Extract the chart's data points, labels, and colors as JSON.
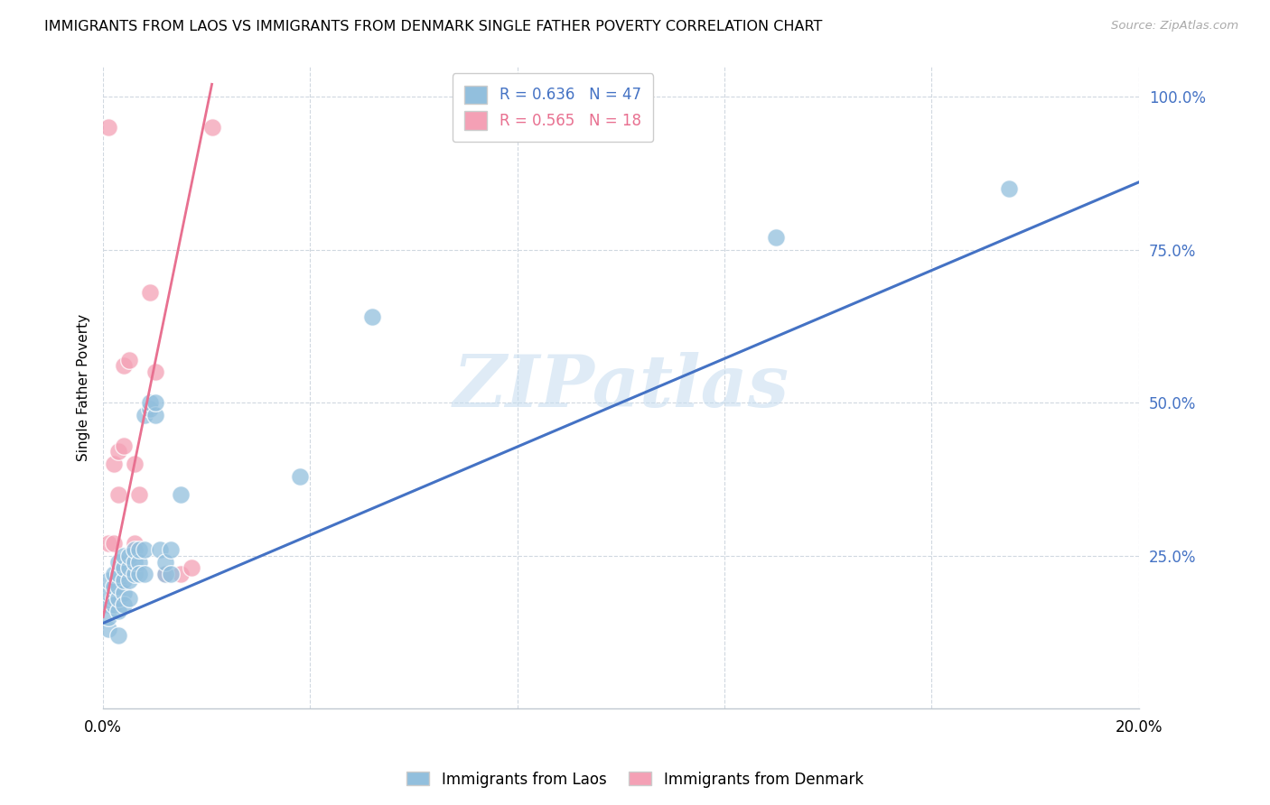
{
  "title": "IMMIGRANTS FROM LAOS VS IMMIGRANTS FROM DENMARK SINGLE FATHER POVERTY CORRELATION CHART",
  "source": "Source: ZipAtlas.com",
  "ylabel": "Single Father Poverty",
  "x_min": 0.0,
  "x_max": 0.2,
  "y_min": 0.0,
  "y_max": 1.05,
  "x_ticks": [
    0.0,
    0.04,
    0.08,
    0.12,
    0.16,
    0.2
  ],
  "x_tick_labels": [
    "0.0%",
    "",
    "",
    "",
    "",
    "20.0%"
  ],
  "y_ticks": [
    0.0,
    0.25,
    0.5,
    0.75,
    1.0
  ],
  "y_tick_labels_right": [
    "",
    "25.0%",
    "50.0%",
    "75.0%",
    "100.0%"
  ],
  "color_laos": "#92bfdd",
  "color_denmark": "#f4a0b5",
  "trendline_laos_color": "#4472c4",
  "trendline_denmark_color": "#e87090",
  "R_laos": 0.636,
  "N_laos": 47,
  "R_denmark": 0.565,
  "N_denmark": 18,
  "watermark": "ZIPatlas",
  "laos_trendline_x0": 0.0,
  "laos_trendline_y0": 0.14,
  "laos_trendline_x1": 0.2,
  "laos_trendline_y1": 0.86,
  "denmark_trendline_x0": 0.0,
  "denmark_trendline_y0": 0.15,
  "denmark_trendline_x1": 0.021,
  "denmark_trendline_y1": 1.02,
  "laos_x": [
    0.001,
    0.001,
    0.001,
    0.001,
    0.001,
    0.002,
    0.002,
    0.002,
    0.002,
    0.003,
    0.003,
    0.003,
    0.003,
    0.003,
    0.003,
    0.004,
    0.004,
    0.004,
    0.004,
    0.004,
    0.005,
    0.005,
    0.005,
    0.005,
    0.006,
    0.006,
    0.006,
    0.007,
    0.007,
    0.007,
    0.008,
    0.008,
    0.008,
    0.009,
    0.009,
    0.01,
    0.01,
    0.011,
    0.012,
    0.012,
    0.013,
    0.013,
    0.015,
    0.038,
    0.052,
    0.13,
    0.175
  ],
  "laos_y": [
    0.17,
    0.19,
    0.21,
    0.13,
    0.15,
    0.18,
    0.2,
    0.22,
    0.17,
    0.16,
    0.18,
    0.2,
    0.22,
    0.24,
    0.12,
    0.19,
    0.21,
    0.23,
    0.25,
    0.17,
    0.21,
    0.23,
    0.25,
    0.18,
    0.22,
    0.24,
    0.26,
    0.24,
    0.22,
    0.26,
    0.26,
    0.48,
    0.22,
    0.49,
    0.5,
    0.48,
    0.5,
    0.26,
    0.22,
    0.24,
    0.22,
    0.26,
    0.35,
    0.38,
    0.64,
    0.77,
    0.85
  ],
  "denmark_x": [
    0.001,
    0.001,
    0.002,
    0.002,
    0.003,
    0.003,
    0.004,
    0.004,
    0.005,
    0.006,
    0.006,
    0.007,
    0.009,
    0.01,
    0.012,
    0.015,
    0.017,
    0.021
  ],
  "denmark_y": [
    0.95,
    0.27,
    0.27,
    0.4,
    0.35,
    0.42,
    0.56,
    0.43,
    0.57,
    0.4,
    0.27,
    0.35,
    0.68,
    0.55,
    0.22,
    0.22,
    0.23,
    0.95
  ]
}
